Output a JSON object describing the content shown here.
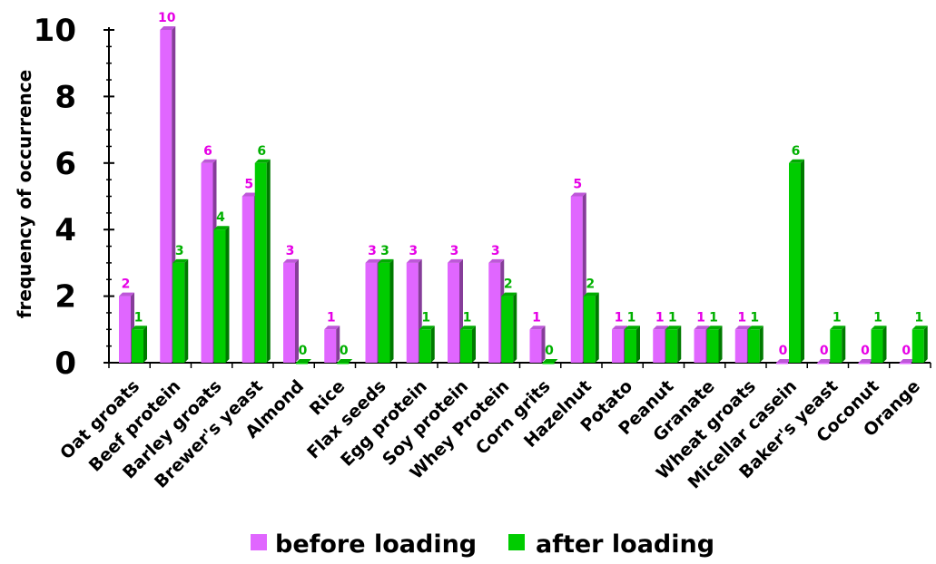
{
  "chart_data": {
    "type": "bar",
    "ylabel": "frequency of occurrence",
    "xlabel": "",
    "ylim": [
      0,
      10
    ],
    "yticks": [
      "0",
      "2",
      "4",
      "6",
      "8",
      "10"
    ],
    "grid": false,
    "legend_position": "bottom",
    "categories": [
      "Oat groats",
      "Beef protein",
      "Barley groats",
      "Brewer's yeast",
      "Almond",
      "Rice",
      "Flax seeds",
      "Egg protein",
      "Soy protein",
      "Whey Protein",
      "Corn grits",
      "Hazelnut",
      "Potato",
      "Peanut",
      "Granate",
      "Wheat groats",
      "Micellar casein",
      "Baker's yeast",
      "Coconut",
      "Orange"
    ],
    "series": [
      {
        "name": "before loading",
        "color": "#e066ff",
        "label_color": "#e600e6",
        "values": [
          2,
          10,
          6,
          5,
          3,
          1,
          3,
          3,
          3,
          3,
          1,
          5,
          1,
          1,
          1,
          1,
          0,
          0,
          0,
          0
        ]
      },
      {
        "name": "after loading",
        "color": "#00cc00",
        "label_color": "#00b000",
        "values": [
          1,
          3,
          4,
          6,
          0,
          0,
          3,
          1,
          1,
          2,
          0,
          2,
          1,
          1,
          1,
          1,
          6,
          1,
          1,
          1
        ]
      }
    ]
  }
}
